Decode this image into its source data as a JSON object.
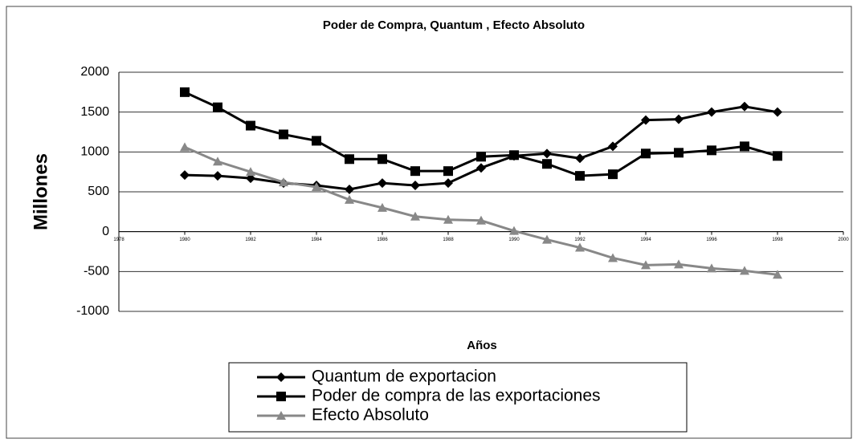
{
  "chart_data": {
    "type": "line",
    "title": "Poder de Compra, Quantum , Efecto Absoluto",
    "x_label": "Años",
    "y_label": "Millones",
    "x": [
      1980,
      1981,
      1982,
      1983,
      1984,
      1985,
      1986,
      1987,
      1988,
      1989,
      1990,
      1991,
      1992,
      1993,
      1994,
      1995,
      1996,
      1997,
      1998
    ],
    "series": [
      {
        "name": "Quantum de exportacion",
        "color": "#000000",
        "marker": "diamond",
        "values": [
          710,
          700,
          670,
          610,
          580,
          530,
          610,
          580,
          610,
          800,
          950,
          980,
          920,
          1070,
          1400,
          1410,
          1500,
          1570,
          1500
        ]
      },
      {
        "name": "Poder de compra de las exportaciones",
        "color": "#000000",
        "marker": "square",
        "values": [
          1750,
          1560,
          1330,
          1220,
          1140,
          910,
          910,
          760,
          760,
          940,
          960,
          850,
          700,
          720,
          980,
          990,
          1020,
          1070,
          950
        ]
      },
      {
        "name": "Efecto Absoluto",
        "color": "#888888",
        "marker": "triangle",
        "values": [
          1060,
          880,
          750,
          620,
          560,
          400,
          300,
          190,
          150,
          140,
          10,
          -100,
          -200,
          -330,
          -420,
          -410,
          -460,
          -490,
          -540
        ]
      }
    ],
    "xlim": [
      1978,
      2000
    ],
    "xticks": [
      1978,
      1980,
      1982,
      1984,
      1986,
      1988,
      1990,
      1992,
      1994,
      1996,
      1998,
      2000
    ],
    "ylim": [
      -1000,
      2000
    ],
    "yticks": [
      -1000,
      -500,
      0,
      500,
      1000,
      1500,
      2000
    ],
    "grid": true,
    "legend": "bottom"
  }
}
